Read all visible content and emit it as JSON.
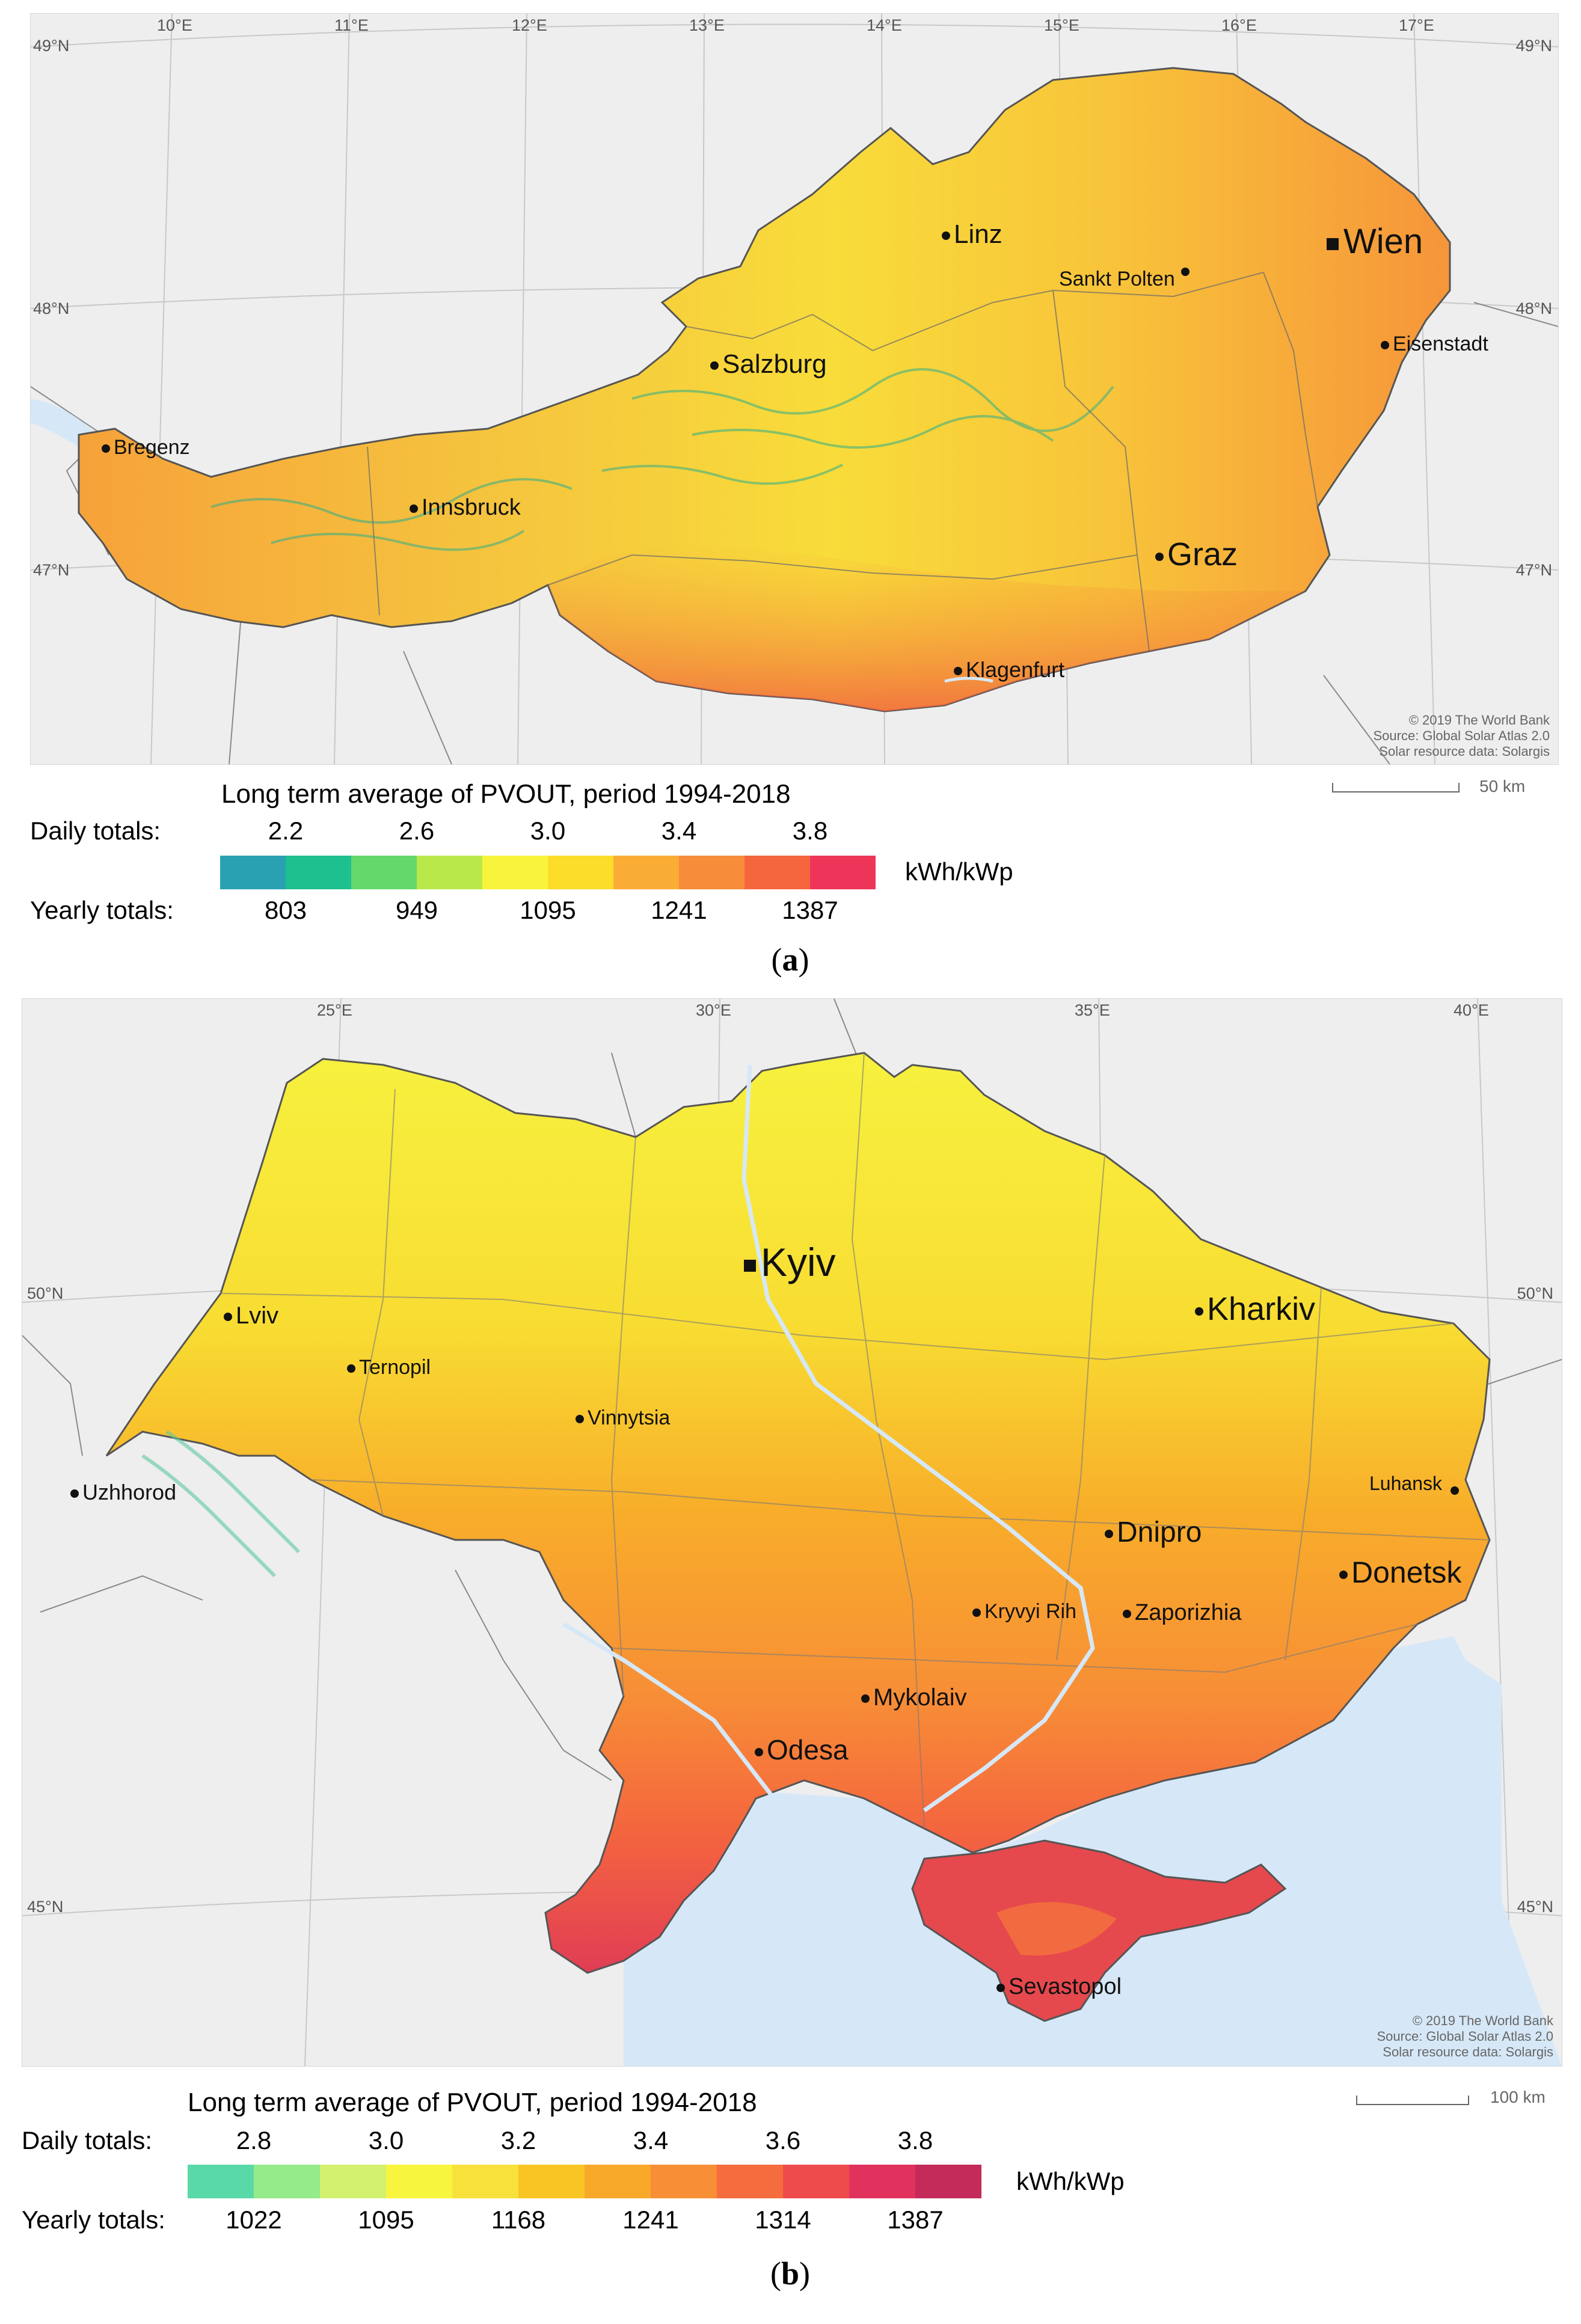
{
  "panel_a": {
    "coords_top": [
      "10°E",
      "11°E",
      "12°E",
      "13°E",
      "14°E",
      "15°E",
      "16°E",
      "17°E"
    ],
    "coords_left": [
      "49°N",
      "48°N",
      "47°N"
    ],
    "coords_right": [
      "49°N",
      "48°N",
      "47°N"
    ],
    "cities": [
      {
        "name": "Wien",
        "marker": "capital"
      },
      {
        "name": "Linz",
        "marker": "city"
      },
      {
        "name": "Sankt Polten",
        "marker": "city"
      },
      {
        "name": "Eisenstadt",
        "marker": "city"
      },
      {
        "name": "Salzburg",
        "marker": "city"
      },
      {
        "name": "Bregenz",
        "marker": "city"
      },
      {
        "name": "Innsbruck",
        "marker": "city"
      },
      {
        "name": "Graz",
        "marker": "city"
      },
      {
        "name": "Klagenfurt",
        "marker": "city"
      }
    ],
    "credits": [
      "© 2019 The World Bank",
      "Source: Global Solar Atlas 2.0",
      "Solar resource data: Solargis"
    ],
    "scale_label": "50 km",
    "legend": {
      "title": "Long term average of PVOUT, period 1994-2018",
      "daily_label": "Daily totals:",
      "yearly_label": "Yearly totals:",
      "daily_values": [
        "2.2",
        "2.6",
        "3.0",
        "3.4",
        "3.8"
      ],
      "yearly_values": [
        "803",
        "949",
        "1095",
        "1241",
        "1387"
      ],
      "unit": "kWh/kWp",
      "colors": [
        "#2aa1b3",
        "#1fc08f",
        "#64d86a",
        "#b9e84a",
        "#f8f43c",
        "#fbdd2a",
        "#f9ad35",
        "#f78c3a",
        "#f5663f",
        "#ee3559"
      ]
    },
    "caption_letter": "a"
  },
  "panel_b": {
    "coords_top": [
      "25°E",
      "30°E",
      "35°E",
      "40°E"
    ],
    "coords_left": [
      "50°N",
      "45°N"
    ],
    "coords_right": [
      "50°N",
      "45°N"
    ],
    "cities": [
      {
        "name": "Kyiv",
        "marker": "capital"
      },
      {
        "name": "Kharkiv",
        "marker": "city"
      },
      {
        "name": "Lviv",
        "marker": "city"
      },
      {
        "name": "Ternopil",
        "marker": "city"
      },
      {
        "name": "Vinnytsia",
        "marker": "city"
      },
      {
        "name": "Uzhhorod",
        "marker": "city"
      },
      {
        "name": "Luhansk",
        "marker": "city"
      },
      {
        "name": "Dnipro",
        "marker": "city"
      },
      {
        "name": "Donetsk",
        "marker": "city"
      },
      {
        "name": "Kryvyi Rih",
        "marker": "city"
      },
      {
        "name": "Zaporizhia",
        "marker": "city"
      },
      {
        "name": "Mykolaiv",
        "marker": "city"
      },
      {
        "name": "Odesa",
        "marker": "city"
      },
      {
        "name": "Sevastopol",
        "marker": "city"
      }
    ],
    "credits": [
      "© 2019 The World Bank",
      "Source: Global Solar Atlas 2.0",
      "Solar resource data: Solargis"
    ],
    "scale_label": "100 km",
    "legend": {
      "title": "Long term average of PVOUT, period 1994-2018",
      "daily_label": "Daily totals:",
      "yearly_label": "Yearly totals:",
      "daily_values": [
        "2.8",
        "3.0",
        "3.2",
        "3.4",
        "3.6",
        "3.8"
      ],
      "yearly_values": [
        "1022",
        "1095",
        "1168",
        "1241",
        "1314",
        "1387"
      ],
      "unit": "kWh/kWp",
      "colors": [
        "#5ad9a8",
        "#95ea8a",
        "#d3f06f",
        "#f7f53d",
        "#f9e13b",
        "#f9c524",
        "#f9a92a",
        "#f88e36",
        "#f56c3e",
        "#ee4b4c",
        "#e1325d",
        "#c42a5a"
      ]
    },
    "caption_letter": "b"
  },
  "colors": {
    "water": "#d6e8f7",
    "map_bg": "#eeeeee",
    "border": "#6b6b6b"
  }
}
